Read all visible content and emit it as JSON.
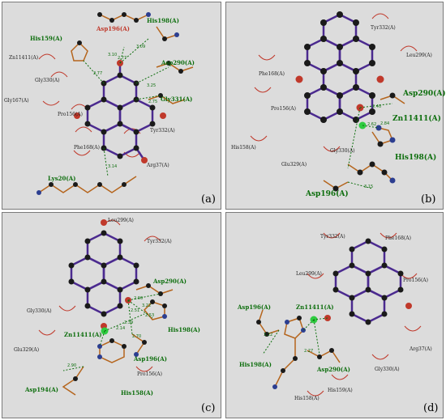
{
  "panels": {
    "a": {
      "label": "(a)",
      "residues": [
        "His198(A)",
        "Asp196(A)",
        "His159(A)",
        "Zn11411(A)",
        "Asp290(A)",
        "Gly330(A)",
        "Gly167(A)",
        "Gly331(A)",
        "Pro156(A)",
        "Tyr332(A)",
        "Phe168(A)",
        "Arg37(A)",
        "Lys20(A)"
      ],
      "distances": [
        "3.09",
        "3.10",
        "2.77",
        "2.77",
        "3.25",
        "2.75",
        "3.14"
      ]
    },
    "b": {
      "label": "(b)",
      "residues": [
        "Tyr332(A)",
        "Leu299(A)",
        "Phe168(A)",
        "Asp290(A)",
        "Pro156(A)",
        "Zn11411(A)",
        "His158(A)",
        "Gly330(A)",
        "Glu329(A)",
        "His198(A)",
        "Asp196(A)"
      ],
      "distances": [
        "2.40",
        "2.62",
        "2.84",
        "3.15"
      ]
    },
    "c": {
      "label": "(c)",
      "residues": [
        "Leu299(A)",
        "Tyr332(A)",
        "Asp290(A)",
        "Gly330(A)",
        "His198(A)",
        "Zn11411(A)",
        "Glu329(A)",
        "Asp196(A)",
        "Pro156(A)",
        "Asp194(A)",
        "His158(A)"
      ],
      "distances": [
        "2.90",
        "3.22",
        "2.51",
        "2.53",
        "2.14",
        "2.39",
        "2.70",
        "2.90"
      ]
    },
    "d": {
      "label": "(d)",
      "residues": [
        "Tyr332(A)",
        "Phe168(A)",
        "Leu299(A)",
        "Pro156(A)",
        "Asp196(A)",
        "Zn11411(A)",
        "Arg37(A)",
        "His198(A)",
        "Asp290(A)",
        "Gly330(A)",
        "His158(A)",
        "His159(A)"
      ],
      "distances": [
        "3.22",
        "2.27"
      ]
    }
  }
}
